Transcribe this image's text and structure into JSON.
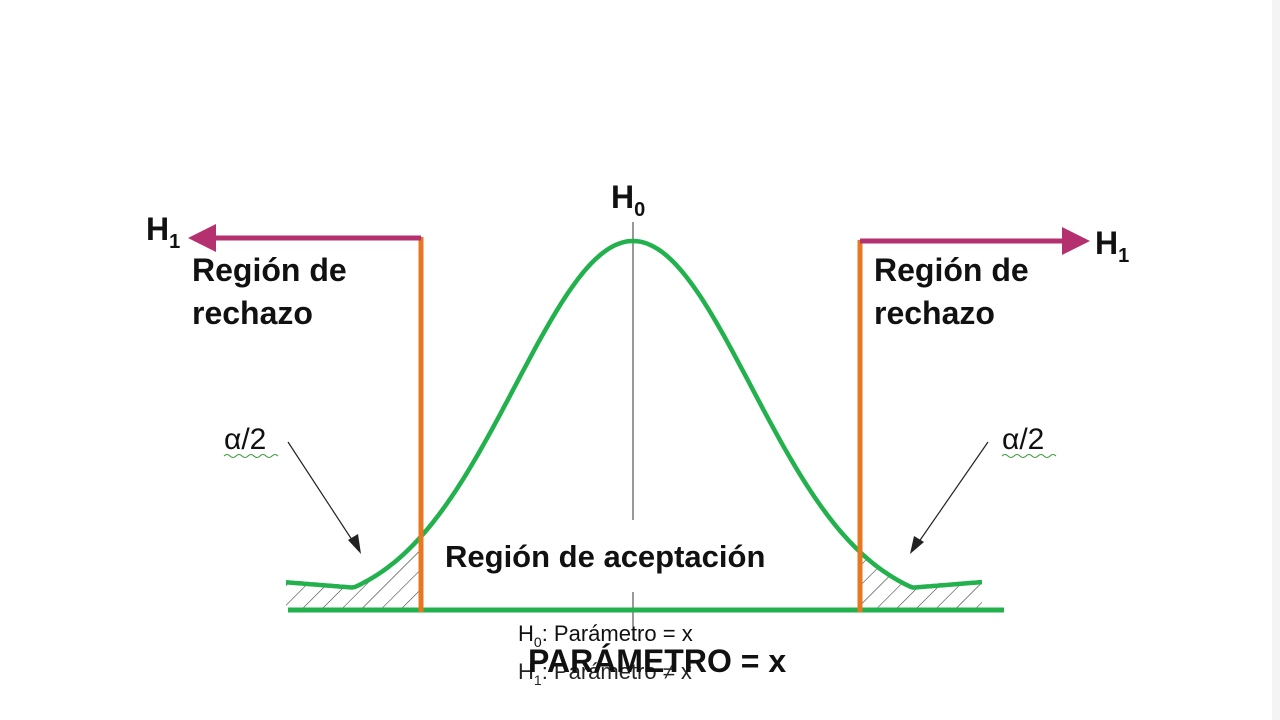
{
  "diagram": {
    "null_hypothesis_label": "H",
    "null_hypothesis_sub": "0",
    "alt_left_label": "H",
    "alt_left_sub": "1",
    "alt_right_label": "H",
    "alt_right_sub": "1",
    "rejection_left_line1": "Región de",
    "rejection_left_line2": "rechazo",
    "rejection_right_line1": "Región de",
    "rejection_right_line2": "rechazo",
    "alpha_left": "α/2",
    "alpha_right": "α/2",
    "acceptance_region": "Región de aceptación",
    "parameter_label": "PARÁMETRO = x",
    "h0_statement_prefix": "H",
    "h0_statement_sub": "0",
    "h0_statement_text": ": Parámetro = x",
    "h1_statement_prefix": "H",
    "h1_statement_sub": "1",
    "h1_statement_text": ": Parámetro ≠ x"
  },
  "colors": {
    "curve": "#22b14c",
    "critical_line": "#e87722",
    "arrow": "#b5306e",
    "hatch": "#333333",
    "text": "#111111"
  }
}
